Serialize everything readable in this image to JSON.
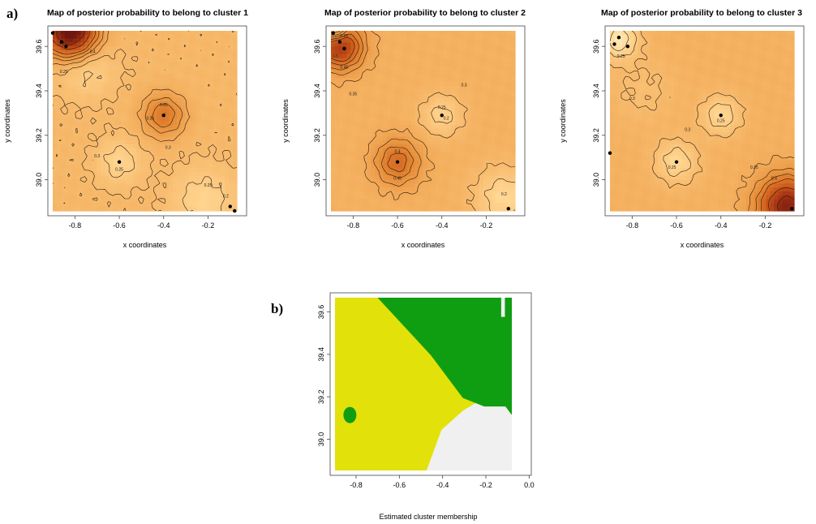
{
  "figure": {
    "panel_a_label": "a)",
    "panel_b_label": "b)"
  },
  "chart_data": [
    {
      "type": "heatmap",
      "title": "Map of posterior probability to belong to cluster  1",
      "xlabel": "x coordinates",
      "ylabel": "y coordinates",
      "xticks": [
        "-0.8",
        "-0.6",
        "-0.4",
        "-0.2"
      ],
      "yticks": [
        "39.0",
        "39.2",
        "39.4",
        "39.6"
      ],
      "xlim": [
        -0.9,
        -0.07
      ],
      "ylim": [
        38.86,
        39.67
      ],
      "scale": {
        "min": 0.1,
        "max": 0.8
      },
      "colors": [
        "#fffbd8",
        "#ffd590",
        "#f4b05f",
        "#e58a35",
        "#cf5c1c",
        "#a53412",
        "#6e1610"
      ],
      "baseline": 0.31,
      "peaks": [
        {
          "x": -0.82,
          "y": 39.67,
          "amp": 0.55,
          "spread": 0.08
        },
        {
          "x": -0.4,
          "y": 39.29,
          "amp": 0.19,
          "spread": 0.065
        },
        {
          "x": -0.6,
          "y": 39.08,
          "amp": -0.09,
          "spread": 0.07
        },
        {
          "x": -0.22,
          "y": 38.91,
          "amp": -0.09,
          "spread": 0.1
        },
        {
          "x": -0.75,
          "y": 39.5,
          "amp": -0.08,
          "spread": 0.09
        }
      ],
      "contour_levels": [
        0.2,
        0.25,
        0.3,
        0.35,
        0.4,
        0.45,
        0.5,
        0.6,
        0.7
      ],
      "contour_labels": [
        {
          "text": "0.2",
          "x": -0.86,
          "y": 39.6
        },
        {
          "text": "0.25",
          "x": -0.85,
          "y": 39.48
        },
        {
          "text": "0.4",
          "x": -0.72,
          "y": 39.57
        },
        {
          "text": "0.45",
          "x": -0.4,
          "y": 39.33
        },
        {
          "text": "0.35",
          "x": -0.46,
          "y": 39.27
        },
        {
          "text": "0.3",
          "x": -0.38,
          "y": 39.14
        },
        {
          "text": "0.25",
          "x": -0.6,
          "y": 39.04
        },
        {
          "text": "0.3",
          "x": -0.7,
          "y": 39.1
        },
        {
          "text": "0.25",
          "x": -0.2,
          "y": 38.97
        },
        {
          "text": "0.2",
          "x": -0.12,
          "y": 38.92
        }
      ],
      "points": [
        {
          "x": -0.9,
          "y": 39.66
        },
        {
          "x": -0.86,
          "y": 39.62
        },
        {
          "x": -0.84,
          "y": 39.6
        },
        {
          "x": -0.6,
          "y": 39.08
        },
        {
          "x": -0.4,
          "y": 39.29
        },
        {
          "x": -0.1,
          "y": 38.88
        },
        {
          "x": -0.08,
          "y": 38.86
        }
      ]
    },
    {
      "type": "heatmap",
      "title": "Map of posterior probability to belong to cluster  2",
      "xlabel": "x coordinates",
      "ylabel": "y coordinates",
      "xticks": [
        "-0.8",
        "-0.6",
        "-0.4",
        "-0.2"
      ],
      "yticks": [
        "39.0",
        "39.2",
        "39.4",
        "39.6"
      ],
      "xlim": [
        -0.9,
        -0.07
      ],
      "ylim": [
        38.86,
        39.67
      ],
      "scale": {
        "min": 0.1,
        "max": 0.8
      },
      "colors": [
        "#fffbd8",
        "#ffd590",
        "#f4b05f",
        "#e58a35",
        "#cf5c1c",
        "#a53412",
        "#6e1610"
      ],
      "baseline": 0.33,
      "peaks": [
        {
          "x": -0.86,
          "y": 39.6,
          "amp": 0.35,
          "spread": 0.07
        },
        {
          "x": -0.88,
          "y": 39.67,
          "amp": -0.22,
          "spread": 0.035
        },
        {
          "x": -0.6,
          "y": 39.08,
          "amp": 0.2,
          "spread": 0.07
        },
        {
          "x": -0.4,
          "y": 39.29,
          "amp": -0.1,
          "spread": 0.065
        },
        {
          "x": -0.12,
          "y": 38.92,
          "amp": -0.12,
          "spread": 0.09
        }
      ],
      "contour_levels": [
        0.2,
        0.25,
        0.3,
        0.35,
        0.4,
        0.45,
        0.5,
        0.55
      ],
      "contour_labels": [
        {
          "text": "0.25",
          "x": -0.84,
          "y": 39.64
        },
        {
          "text": "0.5",
          "x": -0.88,
          "y": 39.55
        },
        {
          "text": "0.45",
          "x": -0.84,
          "y": 39.5
        },
        {
          "text": "0.35",
          "x": -0.8,
          "y": 39.38
        },
        {
          "text": "0.4",
          "x": -0.6,
          "y": 39.12
        },
        {
          "text": "0.45",
          "x": -0.6,
          "y": 39.0
        },
        {
          "text": "0.25",
          "x": -0.4,
          "y": 39.32
        },
        {
          "text": "0.2",
          "x": -0.38,
          "y": 39.27
        },
        {
          "text": "0.3",
          "x": -0.3,
          "y": 39.42
        },
        {
          "text": "0.2",
          "x": -0.12,
          "y": 38.93
        }
      ],
      "points": [
        {
          "x": -0.89,
          "y": 39.66
        },
        {
          "x": -0.86,
          "y": 39.62
        },
        {
          "x": -0.84,
          "y": 39.59
        },
        {
          "x": -0.4,
          "y": 39.29
        },
        {
          "x": -0.6,
          "y": 39.08
        },
        {
          "x": -0.1,
          "y": 38.87
        }
      ]
    },
    {
      "type": "heatmap",
      "title": "Map of posterior probability to belong to cluster  3",
      "xlabel": "x coordinates",
      "ylabel": "y coordinates",
      "xticks": [
        "-0.8",
        "-0.6",
        "-0.4",
        "-0.2"
      ],
      "yticks": [
        "39.0",
        "39.2",
        "39.4",
        "39.6"
      ],
      "xlim": [
        -0.9,
        -0.07
      ],
      "ylim": [
        38.86,
        39.67
      ],
      "scale": {
        "min": 0.1,
        "max": 0.8
      },
      "colors": [
        "#fffbd8",
        "#ffd590",
        "#f4b05f",
        "#e58a35",
        "#cf5c1c",
        "#a53412",
        "#6e1610"
      ],
      "baseline": 0.33,
      "peaks": [
        {
          "x": -0.1,
          "y": 38.88,
          "amp": 0.42,
          "spread": 0.09
        },
        {
          "x": -0.86,
          "y": 39.63,
          "amp": -0.17,
          "spread": 0.06
        },
        {
          "x": -0.6,
          "y": 39.08,
          "amp": -0.12,
          "spread": 0.065
        },
        {
          "x": -0.4,
          "y": 39.29,
          "amp": -0.12,
          "spread": 0.06
        },
        {
          "x": -0.75,
          "y": 39.4,
          "amp": -0.04,
          "spread": 0.1
        }
      ],
      "contour_levels": [
        0.2,
        0.25,
        0.3,
        0.35,
        0.4,
        0.45,
        0.5,
        0.6,
        0.7
      ],
      "contour_labels": [
        {
          "text": "0.25",
          "x": -0.85,
          "y": 39.55
        },
        {
          "text": "0.3",
          "x": -0.8,
          "y": 39.36
        },
        {
          "text": "0.25",
          "x": -0.62,
          "y": 39.05
        },
        {
          "text": "0.3",
          "x": -0.55,
          "y": 39.22
        },
        {
          "text": "0.25",
          "x": -0.4,
          "y": 39.26
        },
        {
          "text": "0.4",
          "x": -0.16,
          "y": 39.0
        },
        {
          "text": "0.35",
          "x": -0.25,
          "y": 39.05
        }
      ],
      "points": [
        {
          "x": -0.86,
          "y": 39.64
        },
        {
          "x": -0.88,
          "y": 39.61
        },
        {
          "x": -0.82,
          "y": 39.6
        },
        {
          "x": -0.9,
          "y": 39.12
        },
        {
          "x": -0.6,
          "y": 39.08
        },
        {
          "x": -0.4,
          "y": 39.29
        },
        {
          "x": -0.08,
          "y": 38.87
        }
      ]
    },
    {
      "type": "heatmap",
      "title": "",
      "xlabel": "Estimated cluster membership",
      "ylabel": "",
      "xticks": [
        "-0.8",
        "-0.6",
        "-0.4",
        "-0.2",
        "0.0"
      ],
      "yticks": [
        "39.0",
        "39.2",
        "39.4",
        "39.6"
      ],
      "xlim": [
        -0.92,
        0.01
      ],
      "ylim": [
        38.83,
        39.69
      ],
      "categories": [
        "1",
        "2",
        "3"
      ],
      "colors": {
        "1": "#e3e10a",
        "2": "#0f9e12",
        "3": "#f0f0f0"
      },
      "regions": {
        "data_x": [
          -0.9,
          -0.07
        ],
        "data_y": [
          38.86,
          39.67
        ],
        "cluster2_boundary_x": [
          -0.7,
          -0.45,
          -0.3,
          -0.2,
          -0.1,
          -0.07
        ],
        "cluster2_boundary_y": [
          39.67,
          39.4,
          39.2,
          39.16,
          39.16,
          39.12
        ],
        "cluster3_boundary_x": [
          -0.47,
          -0.4,
          -0.3,
          -0.2,
          -0.15,
          -0.1,
          -0.07
        ],
        "cluster3_boundary_y": [
          38.86,
          39.05,
          39.14,
          39.2,
          39.3,
          39.43,
          39.48
        ],
        "cluster2_patch": {
          "x": -0.83,
          "y": 39.12,
          "r": 0.025
        }
      }
    }
  ]
}
